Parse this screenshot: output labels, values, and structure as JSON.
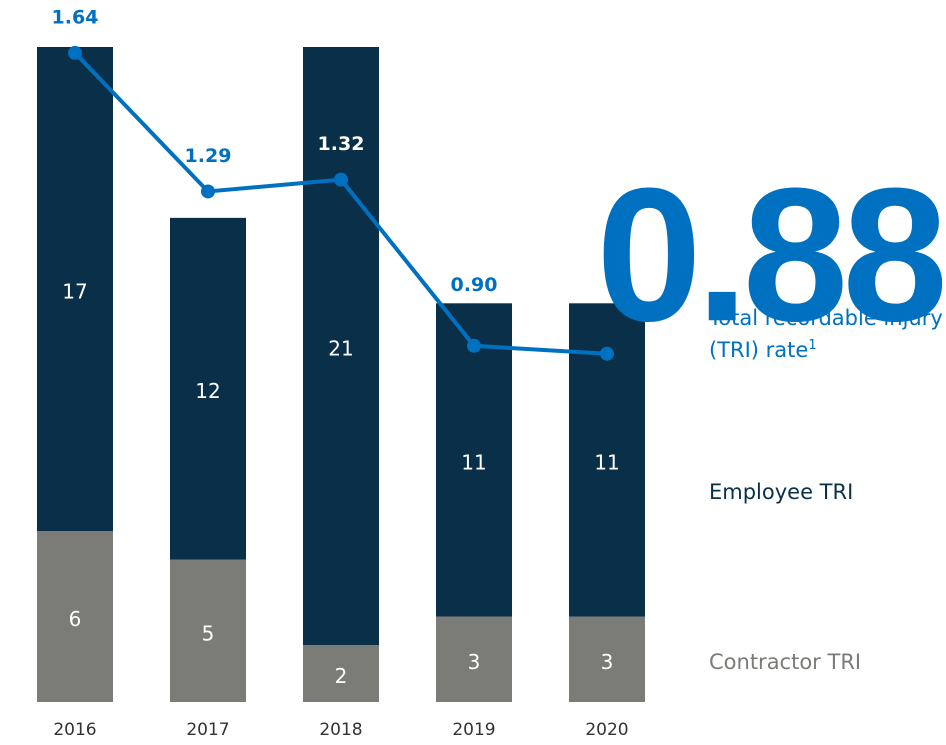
{
  "chart_data": {
    "type": "bar+line",
    "categories": [
      "2016",
      "2017",
      "2018",
      "2019",
      "2020"
    ],
    "series": [
      {
        "name": "Employee TRI",
        "color": "#0a3049",
        "values": [
          17,
          12,
          21,
          11,
          11
        ]
      },
      {
        "name": "Contractor TRI",
        "color": "#7b7b78",
        "values": [
          6,
          5,
          2,
          3,
          3
        ]
      },
      {
        "name": "Total recordable injury (TRI) rate",
        "footnote": "1",
        "color": "#0070c0",
        "axis": "y2",
        "values": [
          1.64,
          1.29,
          1.32,
          0.9,
          0.88
        ],
        "value_labels": [
          "1.64",
          "1.29",
          "1.32",
          "0.90",
          "0.88"
        ]
      }
    ],
    "ylim": [
      0,
      23
    ],
    "y2lim": [
      0,
      1.655
    ],
    "stacked": true
  }
}
